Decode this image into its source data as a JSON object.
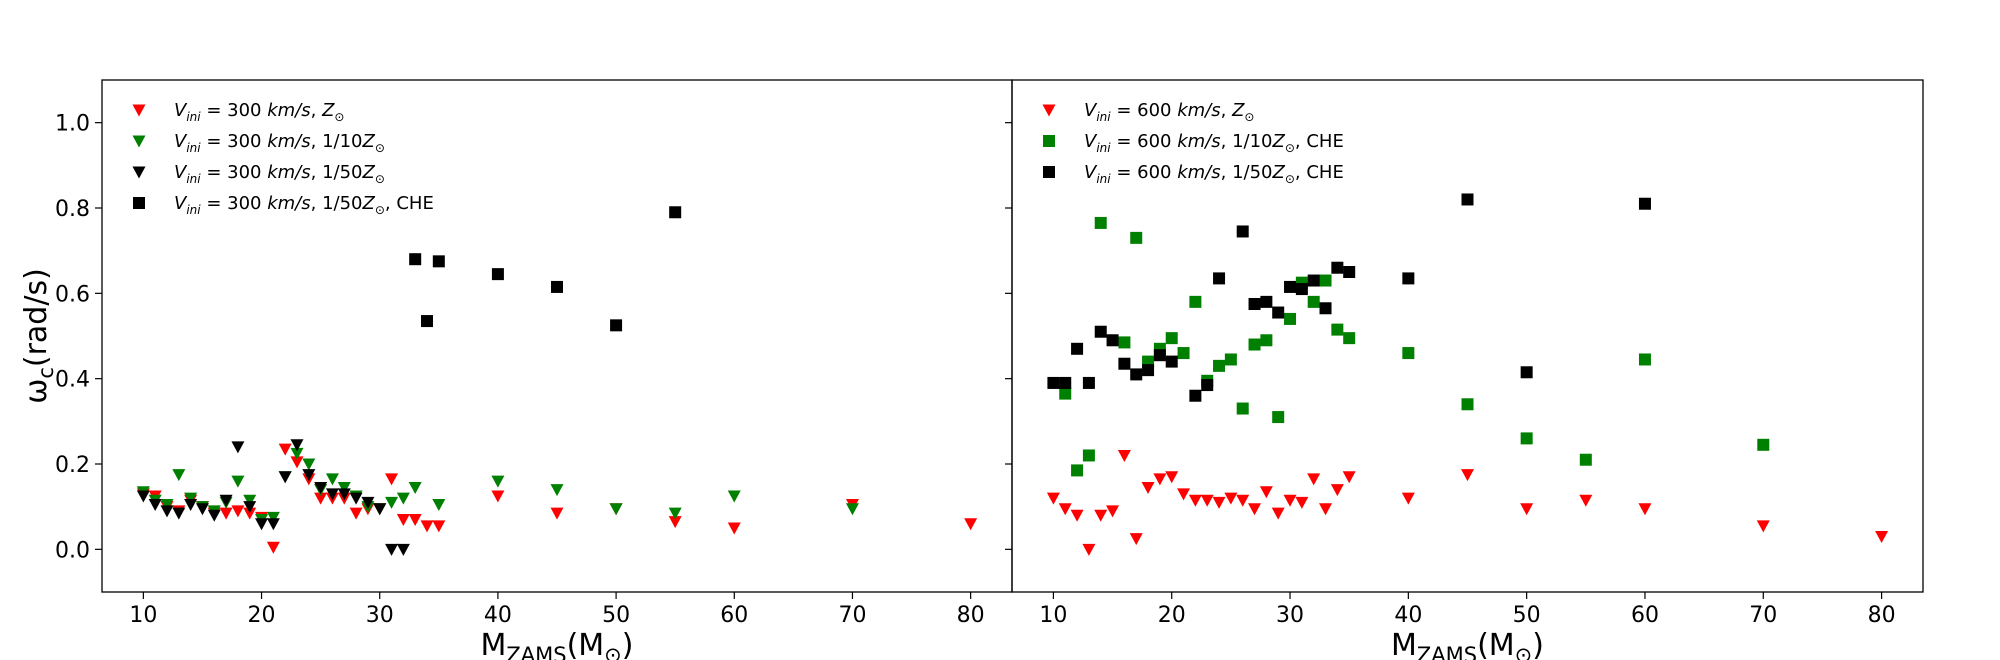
{
  "chart_data": [
    {
      "type": "scatter",
      "xlabel_main": "M",
      "xlabel_sub": "ZAMS",
      "xlabel_unit": "(M",
      "xlabel_unit_sub": "⊙",
      "xlabel_close": ")",
      "ylabel_main": "ω",
      "ylabel_sub": "c",
      "ylabel_rest": "(rad/s)",
      "xlim": [
        6.5,
        83.5
      ],
      "ylim": [
        -0.1,
        1.1
      ],
      "xticks": [
        "10",
        "20",
        "30",
        "40",
        "50",
        "60",
        "70",
        "80"
      ],
      "yticks": [
        "0.0",
        "0.2",
        "0.4",
        "0.6",
        "0.8",
        "1.0"
      ],
      "legend_position": "top-left",
      "series": [
        {
          "name": "Vini = 300 km/s, Z⊙",
          "legend": {
            "v": "V",
            "vsub": "ini",
            "mid": " = 300 ",
            "unit": "km/s",
            "tail": ", ",
            "z": "Z",
            "zsub": "⊙",
            "after": ""
          },
          "marker": "triangle-down",
          "color": "#ff0000",
          "points": [
            [
              10,
              0.13
            ],
            [
              11,
              0.125
            ],
            [
              12,
              0.1
            ],
            [
              13,
              0.09
            ],
            [
              14,
              0.115
            ],
            [
              15,
              0.1
            ],
            [
              16,
              0.085
            ],
            [
              17,
              0.085
            ],
            [
              18,
              0.09
            ],
            [
              19,
              0.085
            ],
            [
              20,
              0.075
            ],
            [
              21,
              0.005
            ],
            [
              22,
              0.235
            ],
            [
              23,
              0.205
            ],
            [
              24,
              0.165
            ],
            [
              25,
              0.12
            ],
            [
              26,
              0.12
            ],
            [
              27,
              0.12
            ],
            [
              28,
              0.085
            ],
            [
              29,
              0.095
            ],
            [
              30,
              0.095
            ],
            [
              31,
              0.165
            ],
            [
              32,
              0.07
            ],
            [
              33,
              0.07
            ],
            [
              34,
              0.055
            ],
            [
              35,
              0.055
            ],
            [
              40,
              0.125
            ],
            [
              45,
              0.085
            ],
            [
              50,
              0.095
            ],
            [
              55,
              0.065
            ],
            [
              60,
              0.05
            ],
            [
              70,
              0.105
            ],
            [
              80,
              0.06
            ]
          ]
        },
        {
          "name": "Vini = 300 km/s, 1/10Z⊙",
          "legend": {
            "v": "V",
            "vsub": "ini",
            "mid": " = 300 ",
            "unit": "km/s",
            "tail": ", 1/10",
            "z": "Z",
            "zsub": "⊙",
            "after": ""
          },
          "marker": "triangle-down",
          "color": "#008000",
          "points": [
            [
              10,
              0.135
            ],
            [
              11,
              0.115
            ],
            [
              12,
              0.105
            ],
            [
              13,
              0.175
            ],
            [
              14,
              0.12
            ],
            [
              15,
              0.1
            ],
            [
              16,
              0.09
            ],
            [
              17,
              0.11
            ],
            [
              18,
              0.16
            ],
            [
              19,
              0.115
            ],
            [
              20,
              0.07
            ],
            [
              21,
              0.075
            ],
            [
              22,
              0.17
            ],
            [
              23,
              0.225
            ],
            [
              24,
              0.2
            ],
            [
              25,
              0.14
            ],
            [
              26,
              0.165
            ],
            [
              27,
              0.145
            ],
            [
              28,
              0.125
            ],
            [
              29,
              0.1
            ],
            [
              30,
              0.095
            ],
            [
              31,
              0.11
            ],
            [
              32,
              0.12
            ],
            [
              33,
              0.145
            ],
            [
              35,
              0.105
            ],
            [
              40,
              0.16
            ],
            [
              45,
              0.14
            ],
            [
              50,
              0.095
            ],
            [
              55,
              0.085
            ],
            [
              60,
              0.125
            ],
            [
              70,
              0.095
            ]
          ]
        },
        {
          "name": "Vini = 300 km/s, 1/50Z⊙",
          "legend": {
            "v": "V",
            "vsub": "ini",
            "mid": " = 300 ",
            "unit": "km/s",
            "tail": ", 1/50",
            "z": "Z",
            "zsub": "⊙",
            "after": ""
          },
          "marker": "triangle-down",
          "color": "#000000",
          "points": [
            [
              10,
              0.125
            ],
            [
              11,
              0.105
            ],
            [
              12,
              0.09
            ],
            [
              13,
              0.085
            ],
            [
              14,
              0.105
            ],
            [
              15,
              0.095
            ],
            [
              16,
              0.08
            ],
            [
              17,
              0.115
            ],
            [
              18,
              0.24
            ],
            [
              19,
              0.1
            ],
            [
              20,
              0.06
            ],
            [
              21,
              0.06
            ],
            [
              22,
              0.17
            ],
            [
              23,
              0.245
            ],
            [
              24,
              0.175
            ],
            [
              25,
              0.145
            ],
            [
              26,
              0.13
            ],
            [
              27,
              0.13
            ],
            [
              28,
              0.12
            ],
            [
              29,
              0.11
            ],
            [
              30,
              0.095
            ],
            [
              31,
              0.0
            ],
            [
              32,
              0.0
            ]
          ]
        },
        {
          "name": "Vini = 300 km/s, 1/50Z⊙, CHE",
          "legend": {
            "v": "V",
            "vsub": "ini",
            "mid": " = 300 ",
            "unit": "km/s",
            "tail": ", 1/50",
            "z": "Z",
            "zsub": "⊙",
            "after": ", CHE"
          },
          "marker": "square",
          "color": "#000000",
          "points": [
            [
              33,
              0.68
            ],
            [
              34,
              0.535
            ],
            [
              35,
              0.675
            ],
            [
              40,
              0.645
            ],
            [
              45,
              0.615
            ],
            [
              50,
              0.525
            ],
            [
              55,
              0.79
            ]
          ]
        }
      ]
    },
    {
      "type": "scatter",
      "xlabel_main": "M",
      "xlabel_sub": "ZAMS",
      "xlabel_unit": "(M",
      "xlabel_unit_sub": "⊙",
      "xlabel_close": ")",
      "xlim": [
        6.5,
        83.5
      ],
      "ylim": [
        -0.1,
        1.1
      ],
      "xticks": [
        "10",
        "20",
        "30",
        "40",
        "50",
        "60",
        "70",
        "80"
      ],
      "legend_position": "top-left",
      "series": [
        {
          "name": "Vini = 600 km/s, Z⊙",
          "legend": {
            "v": "V",
            "vsub": "ini",
            "mid": " = 600 ",
            "unit": "km/s",
            "tail": ", ",
            "z": "Z",
            "zsub": "⊙",
            "after": ""
          },
          "marker": "triangle-down",
          "color": "#ff0000",
          "points": [
            [
              10,
              0.12
            ],
            [
              11,
              0.095
            ],
            [
              12,
              0.08
            ],
            [
              13,
              0.0
            ],
            [
              14,
              0.08
            ],
            [
              15,
              0.09
            ],
            [
              16,
              0.22
            ],
            [
              17,
              0.025
            ],
            [
              18,
              0.145
            ],
            [
              19,
              0.165
            ],
            [
              20,
              0.17
            ],
            [
              21,
              0.13
            ],
            [
              22,
              0.115
            ],
            [
              23,
              0.115
            ],
            [
              24,
              0.11
            ],
            [
              25,
              0.12
            ],
            [
              26,
              0.115
            ],
            [
              27,
              0.095
            ],
            [
              28,
              0.135
            ],
            [
              29,
              0.085
            ],
            [
              30,
              0.115
            ],
            [
              31,
              0.11
            ],
            [
              32,
              0.165
            ],
            [
              33,
              0.095
            ],
            [
              34,
              0.14
            ],
            [
              35,
              0.17
            ],
            [
              40,
              0.12
            ],
            [
              45,
              0.175
            ],
            [
              50,
              0.095
            ],
            [
              55,
              0.115
            ],
            [
              60,
              0.095
            ],
            [
              70,
              0.055
            ],
            [
              80,
              0.03
            ]
          ]
        },
        {
          "name": "Vini = 600 km/s, 1/10Z⊙, CHE",
          "legend": {
            "v": "V",
            "vsub": "ini",
            "mid": " = 600 ",
            "unit": "km/s",
            "tail": ", 1/10",
            "z": "Z",
            "zsub": "⊙",
            "after": ", CHE"
          },
          "marker": "square",
          "color": "#008000",
          "points": [
            [
              11,
              0.365
            ],
            [
              12,
              0.185
            ],
            [
              13,
              0.22
            ],
            [
              14,
              0.765
            ],
            [
              16,
              0.485
            ],
            [
              17,
              0.73
            ],
            [
              18,
              0.44
            ],
            [
              19,
              0.47
            ],
            [
              20,
              0.495
            ],
            [
              21,
              0.46
            ],
            [
              22,
              0.58
            ],
            [
              23,
              0.395
            ],
            [
              24,
              0.43
            ],
            [
              25,
              0.445
            ],
            [
              26,
              0.33
            ],
            [
              27,
              0.48
            ],
            [
              28,
              0.49
            ],
            [
              29,
              0.31
            ],
            [
              30,
              0.54
            ],
            [
              31,
              0.625
            ],
            [
              32,
              0.58
            ],
            [
              33,
              0.63
            ],
            [
              34,
              0.515
            ],
            [
              35,
              0.495
            ],
            [
              40,
              0.46
            ],
            [
              45,
              0.34
            ],
            [
              50,
              0.26
            ],
            [
              55,
              0.21
            ],
            [
              60,
              0.445
            ],
            [
              70,
              0.245
            ]
          ]
        },
        {
          "name": "Vini = 600 km/s, 1/50Z⊙, CHE",
          "legend": {
            "v": "V",
            "vsub": "ini",
            "mid": " = 600 ",
            "unit": "km/s",
            "tail": ", 1/50",
            "z": "Z",
            "zsub": "⊙",
            "after": ", CHE"
          },
          "marker": "square",
          "color": "#000000",
          "points": [
            [
              10,
              0.39
            ],
            [
              11,
              0.39
            ],
            [
              12,
              0.47
            ],
            [
              13,
              0.39
            ],
            [
              14,
              0.51
            ],
            [
              15,
              0.49
            ],
            [
              16,
              0.435
            ],
            [
              17,
              0.41
            ],
            [
              18,
              0.42
            ],
            [
              19,
              0.455
            ],
            [
              20,
              0.44
            ],
            [
              22,
              0.36
            ],
            [
              23,
              0.385
            ],
            [
              24,
              0.635
            ],
            [
              26,
              0.745
            ],
            [
              27,
              0.575
            ],
            [
              28,
              0.58
            ],
            [
              29,
              0.555
            ],
            [
              30,
              0.615
            ],
            [
              31,
              0.61
            ],
            [
              32,
              0.63
            ],
            [
              33,
              0.565
            ],
            [
              34,
              0.66
            ],
            [
              35,
              0.65
            ],
            [
              40,
              0.635
            ],
            [
              45,
              0.82
            ],
            [
              50,
              0.415
            ],
            [
              60,
              0.81
            ]
          ]
        }
      ]
    }
  ]
}
